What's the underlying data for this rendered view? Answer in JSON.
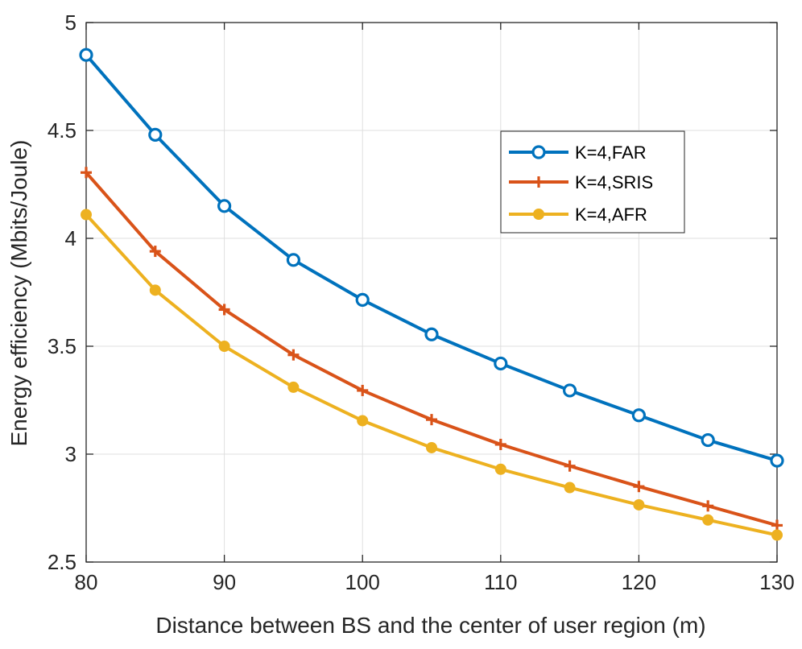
{
  "chart_data": {
    "type": "line",
    "title": "",
    "xlabel": "Distance between BS and the center of user region (m)",
    "ylabel": "Energy efficiency (Mbits/Joule)",
    "xlim": [
      80,
      130
    ],
    "ylim": [
      2.5,
      5
    ],
    "xticks": [
      80,
      90,
      100,
      110,
      120,
      130
    ],
    "yticks": [
      2.5,
      3,
      3.5,
      4,
      4.5,
      5
    ],
    "xtick_labels": [
      "80",
      "90",
      "100",
      "110",
      "120",
      "130"
    ],
    "ytick_labels": [
      "2.5",
      "3",
      "3.5",
      "4",
      "4.5",
      "5"
    ],
    "grid": true,
    "legend_position": "upper-right",
    "x": [
      80,
      85,
      90,
      95,
      100,
      105,
      110,
      115,
      120,
      125,
      130
    ],
    "series": [
      {
        "name": "K=4,FAR",
        "color": "#0072BD",
        "marker": "circle",
        "values": [
          4.85,
          4.48,
          4.15,
          3.9,
          3.715,
          3.555,
          3.42,
          3.295,
          3.18,
          3.065,
          2.97
        ]
      },
      {
        "name": "K=4,SRIS",
        "color": "#D95319",
        "marker": "plus",
        "values": [
          4.305,
          3.94,
          3.67,
          3.46,
          3.295,
          3.16,
          3.045,
          2.945,
          2.85,
          2.76,
          2.67
        ]
      },
      {
        "name": "K=4,AFR",
        "color": "#EDB120",
        "marker": "dot",
        "values": [
          4.11,
          3.76,
          3.5,
          3.31,
          3.155,
          3.03,
          2.93,
          2.845,
          2.765,
          2.695,
          2.625
        ]
      }
    ]
  }
}
